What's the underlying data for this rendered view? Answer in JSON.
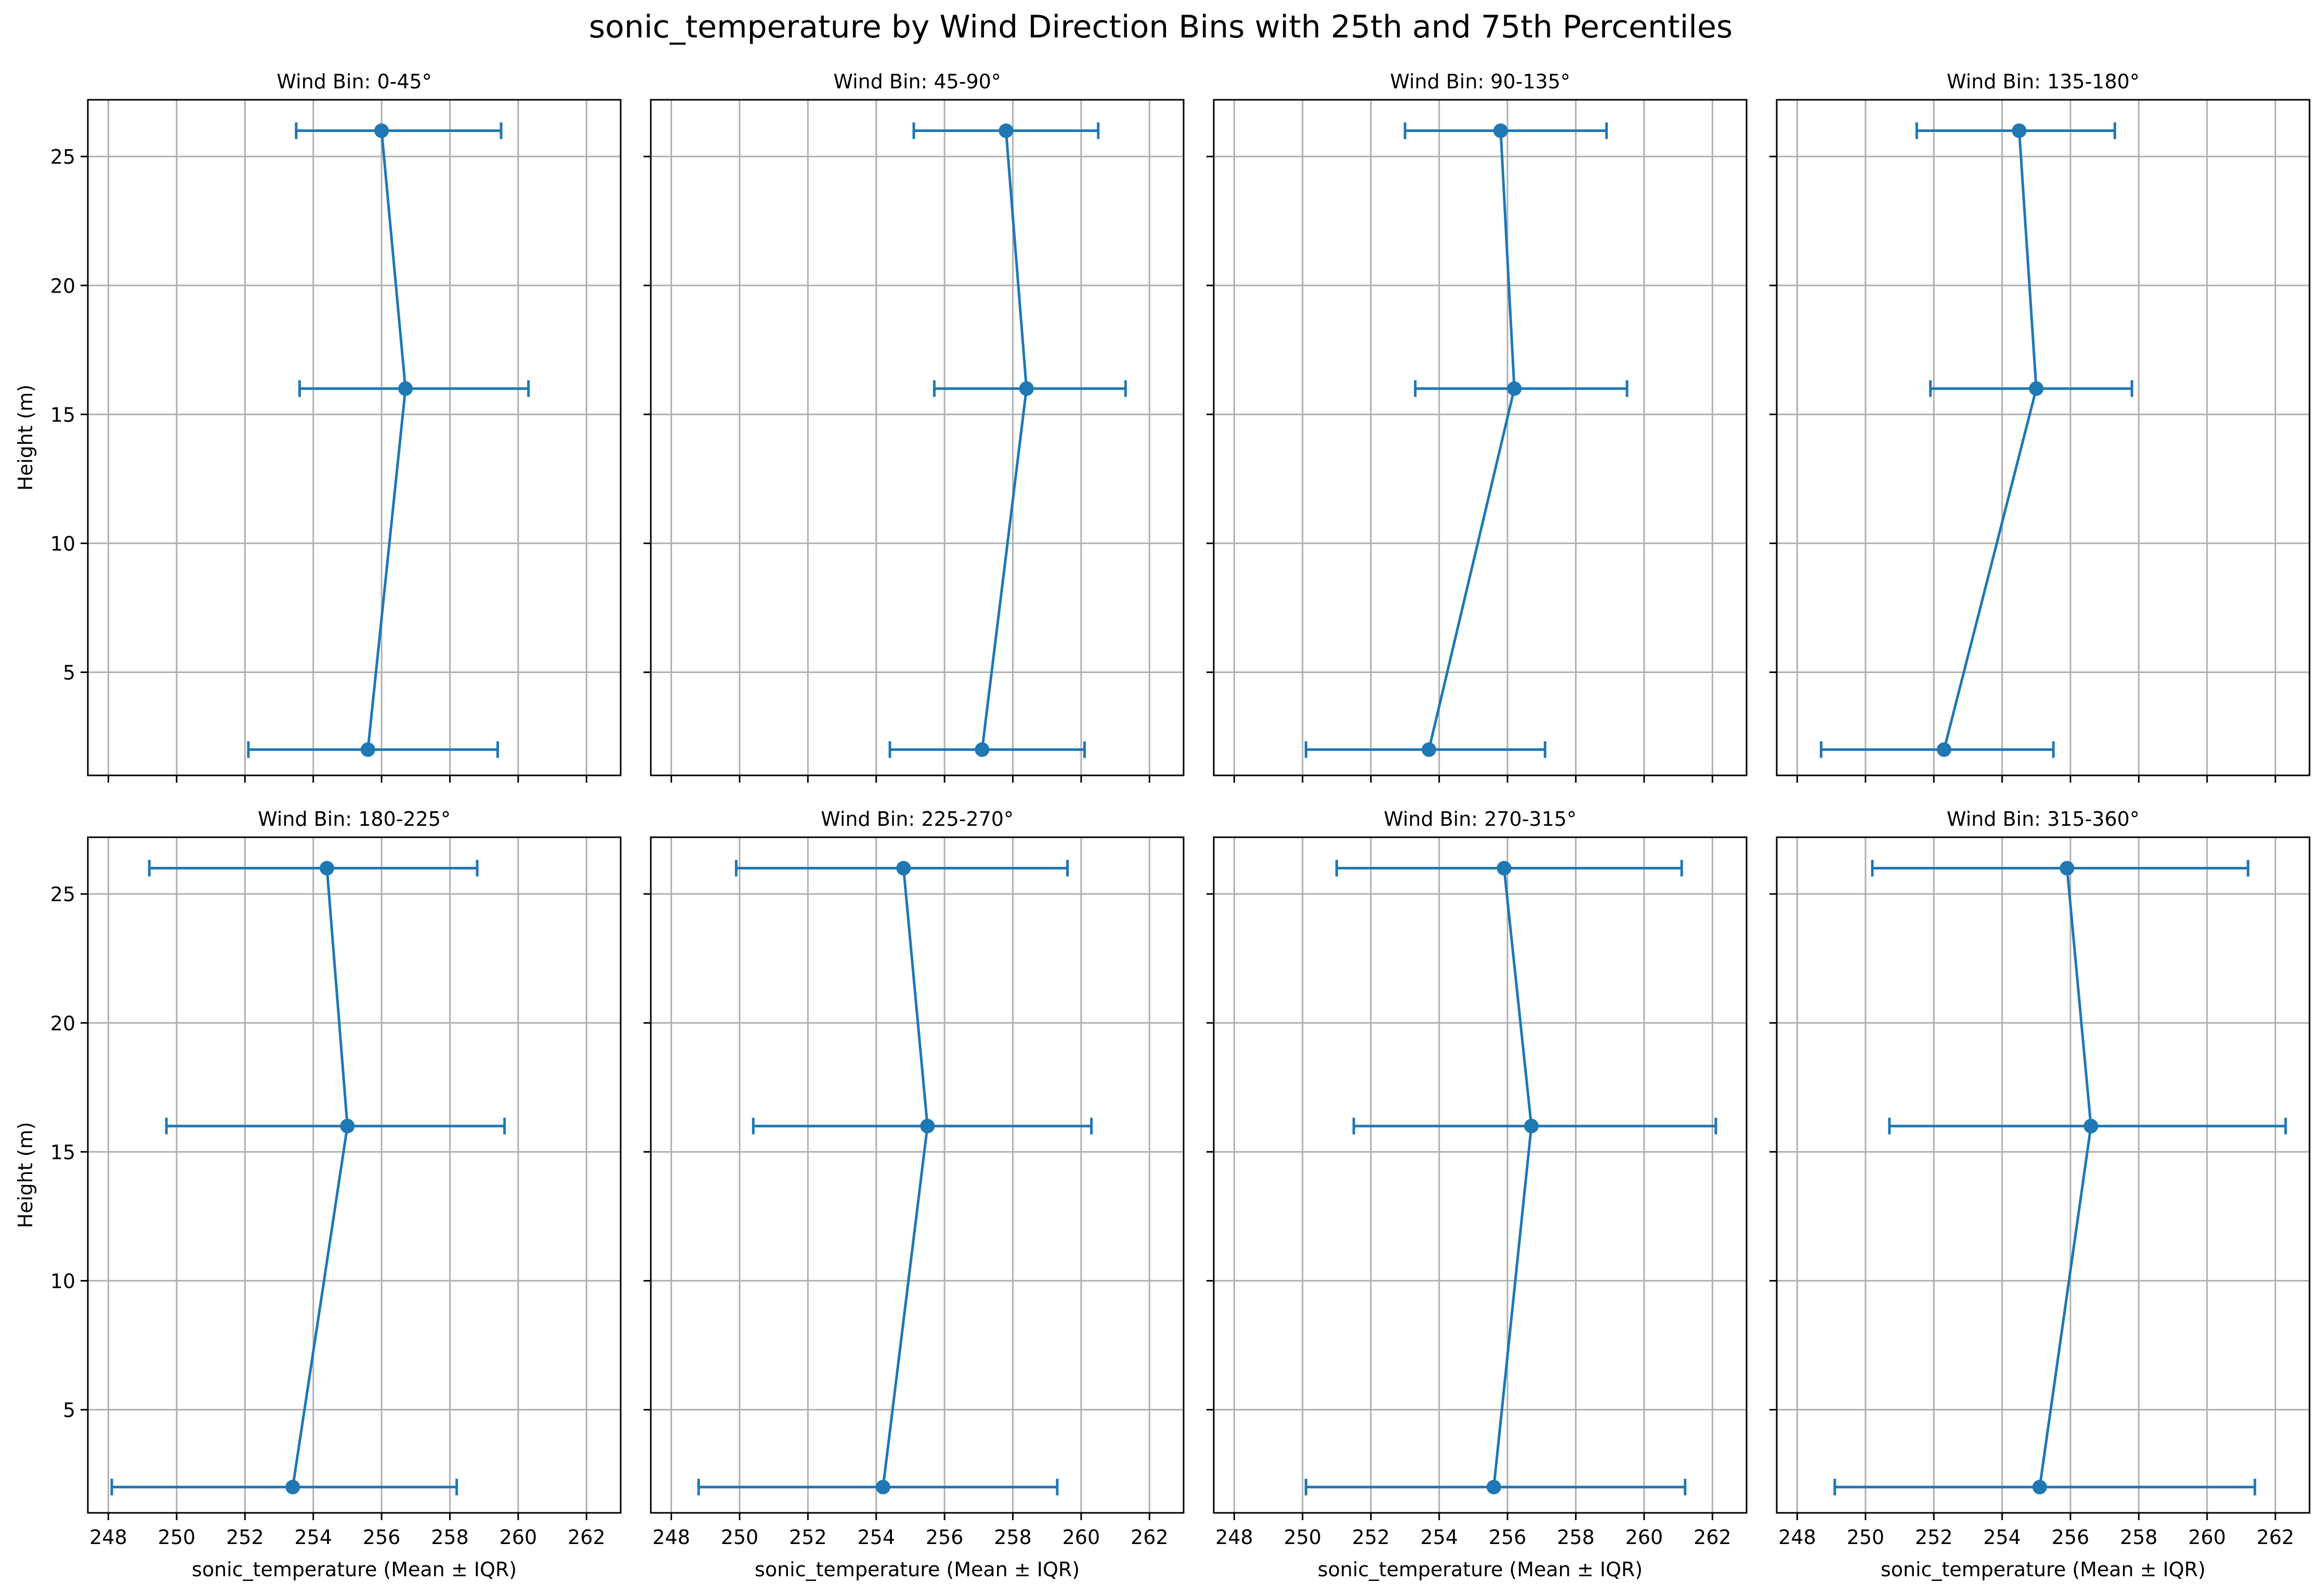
{
  "figure": {
    "title": "sonic_temperature by Wind Direction Bins with 25th and 75th Percentiles"
  },
  "axes_common": {
    "xlabel": "sonic_temperature (Mean ± IQR)",
    "ylabel": "Height (m)",
    "xlim": [
      247.4,
      263.0
    ],
    "ylim": [
      1.0,
      27.2
    ],
    "xticks": [
      248,
      250,
      252,
      254,
      256,
      258,
      260,
      262
    ],
    "yticks": [
      5,
      10,
      15,
      20,
      25
    ],
    "grid": true,
    "line_color": "#1f77b4"
  },
  "chart_data": [
    {
      "type": "line",
      "title": "Wind Bin: 0-45°",
      "y": [
        2,
        16,
        26
      ],
      "series": [
        {
          "name": "",
          "x_mean": [
            255.6,
            256.7,
            256.0
          ],
          "x_p25": [
            252.1,
            253.6,
            253.5
          ],
          "x_p75": [
            259.4,
            260.3,
            259.5
          ]
        }
      ]
    },
    {
      "type": "line",
      "title": "Wind Bin: 45-90°",
      "y": [
        2,
        16,
        26
      ],
      "series": [
        {
          "name": "",
          "x_mean": [
            257.1,
            258.4,
            257.8
          ],
          "x_p25": [
            254.4,
            255.7,
            255.1
          ],
          "x_p75": [
            260.1,
            261.3,
            260.5
          ]
        }
      ]
    },
    {
      "type": "line",
      "title": "Wind Bin: 90-135°",
      "y": [
        2,
        16,
        26
      ],
      "series": [
        {
          "name": "",
          "x_mean": [
            253.7,
            256.2,
            255.8
          ],
          "x_p25": [
            250.1,
            253.3,
            253.0
          ],
          "x_p75": [
            257.1,
            259.5,
            258.9
          ]
        }
      ]
    },
    {
      "type": "line",
      "title": "Wind Bin: 135-180°",
      "y": [
        2,
        16,
        26
      ],
      "series": [
        {
          "name": "",
          "x_mean": [
            252.3,
            255.0,
            254.5
          ],
          "x_p25": [
            248.7,
            251.9,
            251.5
          ],
          "x_p75": [
            255.5,
            257.8,
            257.3
          ]
        }
      ]
    },
    {
      "type": "line",
      "title": "Wind Bin: 180-225°",
      "y": [
        2,
        16,
        26
      ],
      "series": [
        {
          "name": "",
          "x_mean": [
            253.4,
            255.0,
            254.4
          ],
          "x_p25": [
            248.1,
            249.7,
            249.2
          ],
          "x_p75": [
            258.2,
            259.6,
            258.8
          ]
        }
      ]
    },
    {
      "type": "line",
      "title": "Wind Bin: 225-270°",
      "y": [
        2,
        16,
        26
      ],
      "series": [
        {
          "name": "",
          "x_mean": [
            254.2,
            255.5,
            254.8
          ],
          "x_p25": [
            248.8,
            250.4,
            249.9
          ],
          "x_p75": [
            259.3,
            260.3,
            259.6
          ]
        }
      ]
    },
    {
      "type": "line",
      "title": "Wind Bin: 270-315°",
      "y": [
        2,
        16,
        26
      ],
      "series": [
        {
          "name": "",
          "x_mean": [
            255.6,
            256.7,
            255.9
          ],
          "x_p25": [
            250.1,
            251.5,
            251.0
          ],
          "x_p75": [
            261.2,
            262.1,
            261.1
          ]
        }
      ]
    },
    {
      "type": "line",
      "title": "Wind Bin: 315-360°",
      "y": [
        2,
        16,
        26
      ],
      "series": [
        {
          "name": "",
          "x_mean": [
            255.1,
            256.6,
            255.9
          ],
          "x_p25": [
            249.1,
            250.7,
            250.2
          ],
          "x_p75": [
            261.4,
            262.3,
            261.2
          ]
        }
      ]
    }
  ]
}
